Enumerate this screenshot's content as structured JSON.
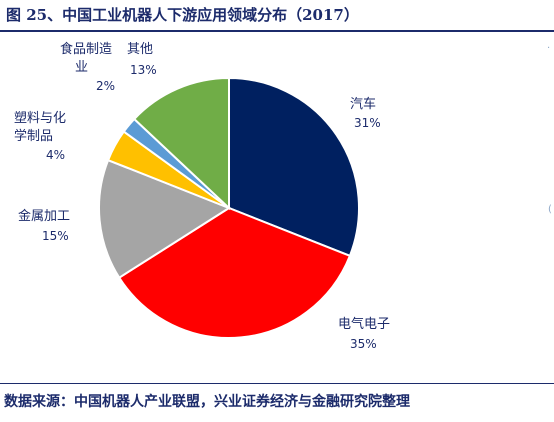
{
  "figure": {
    "title": "图 25、中国工业机器人下游应用领域分布（2017）",
    "source": "数据来源：中国机器人产业联盟，兴业证券经济与金融研究院整理"
  },
  "chart_data": {
    "type": "pie",
    "title": "图 25、中国工业机器人下游应用领域分布（2017）",
    "start": "12 o'clock",
    "direction": "clockwise",
    "slices": [
      {
        "label": "汽车",
        "value": 31,
        "value_label": "31%",
        "color": "#002060",
        "label_side": "right"
      },
      {
        "label": "电气电子",
        "value": 35,
        "value_label": "35%",
        "color": "#ff0000",
        "label_side": "bottom-right"
      },
      {
        "label": "金属加工",
        "value": 15,
        "value_label": "15%",
        "color": "#a5a5a5",
        "label_side": "left"
      },
      {
        "label": "塑料与化学制品",
        "value": 4,
        "value_label": "4%",
        "color": "#ffc000",
        "label_side": "left"
      },
      {
        "label": "食品制造业",
        "value": 2,
        "value_label": "2%",
        "color": "#5b9bd5",
        "label_side": "top-left"
      },
      {
        "label": "其他",
        "value": 13,
        "value_label": "13%",
        "color": "#70ad47",
        "label_side": "top"
      }
    ]
  }
}
